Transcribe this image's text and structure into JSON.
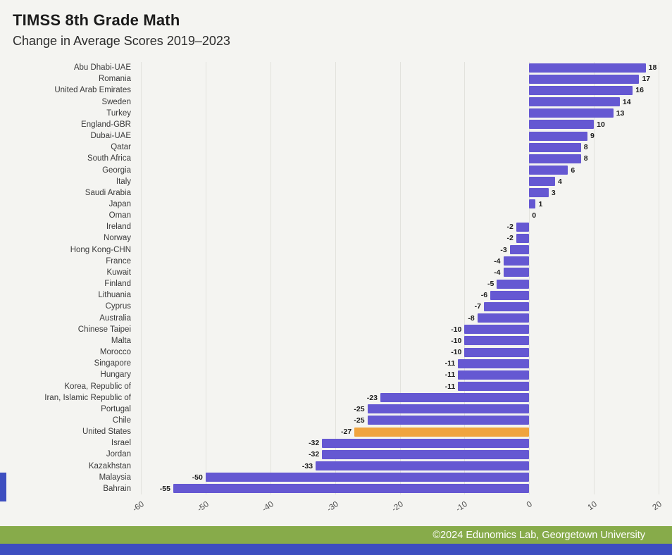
{
  "footer": {
    "text": "©2024 Edunomics Lab, Georgetown University"
  },
  "colors": {
    "bar": "#6558d2",
    "highlight": "#f0a43f",
    "footer_green": "#87ab4a",
    "footer_blue": "#3d4ec0",
    "background": "#f4f4f1",
    "gridline": "#e2e2dd"
  },
  "chart_data": {
    "type": "bar",
    "orientation": "horizontal",
    "title": "TIMSS 8th Grade Math",
    "subtitle": "Change in Average Scores 2019–2023",
    "xlabel": "",
    "ylabel": "",
    "xlim": [
      -60,
      20
    ],
    "xticks": [
      -60,
      -50,
      -40,
      -30,
      -20,
      -10,
      0,
      10,
      20
    ],
    "grid": true,
    "legend": "none",
    "highlight_category": "United States",
    "categories": [
      "Abu Dhabi-UAE",
      "Romania",
      "United Arab Emirates",
      "Sweden",
      "Turkey",
      "England-GBR",
      "Dubai-UAE",
      "Qatar",
      "South Africa",
      "Georgia",
      "Italy",
      "Saudi Arabia",
      "Japan",
      "Oman",
      "Ireland",
      "Norway",
      "Hong Kong-CHN",
      "France",
      "Kuwait",
      "Finland",
      "Lithuania",
      "Cyprus",
      "Australia",
      "Chinese Taipei",
      "Malta",
      "Morocco",
      "Singapore",
      "Hungary",
      "Korea, Republic of",
      "Iran, Islamic Republic of",
      "Portugal",
      "Chile",
      "United States",
      "Israel",
      "Jordan",
      "Kazakhstan",
      "Malaysia",
      "Bahrain"
    ],
    "values": [
      18,
      17,
      16,
      14,
      13,
      10,
      9,
      8,
      8,
      6,
      4,
      3,
      1,
      0,
      -2,
      -2,
      -3,
      -4,
      -4,
      -5,
      -6,
      -7,
      -8,
      -10,
      -10,
      -10,
      -11,
      -11,
      -11,
      -23,
      -25,
      -25,
      -27,
      -32,
      -32,
      -33,
      -50,
      -55
    ]
  }
}
